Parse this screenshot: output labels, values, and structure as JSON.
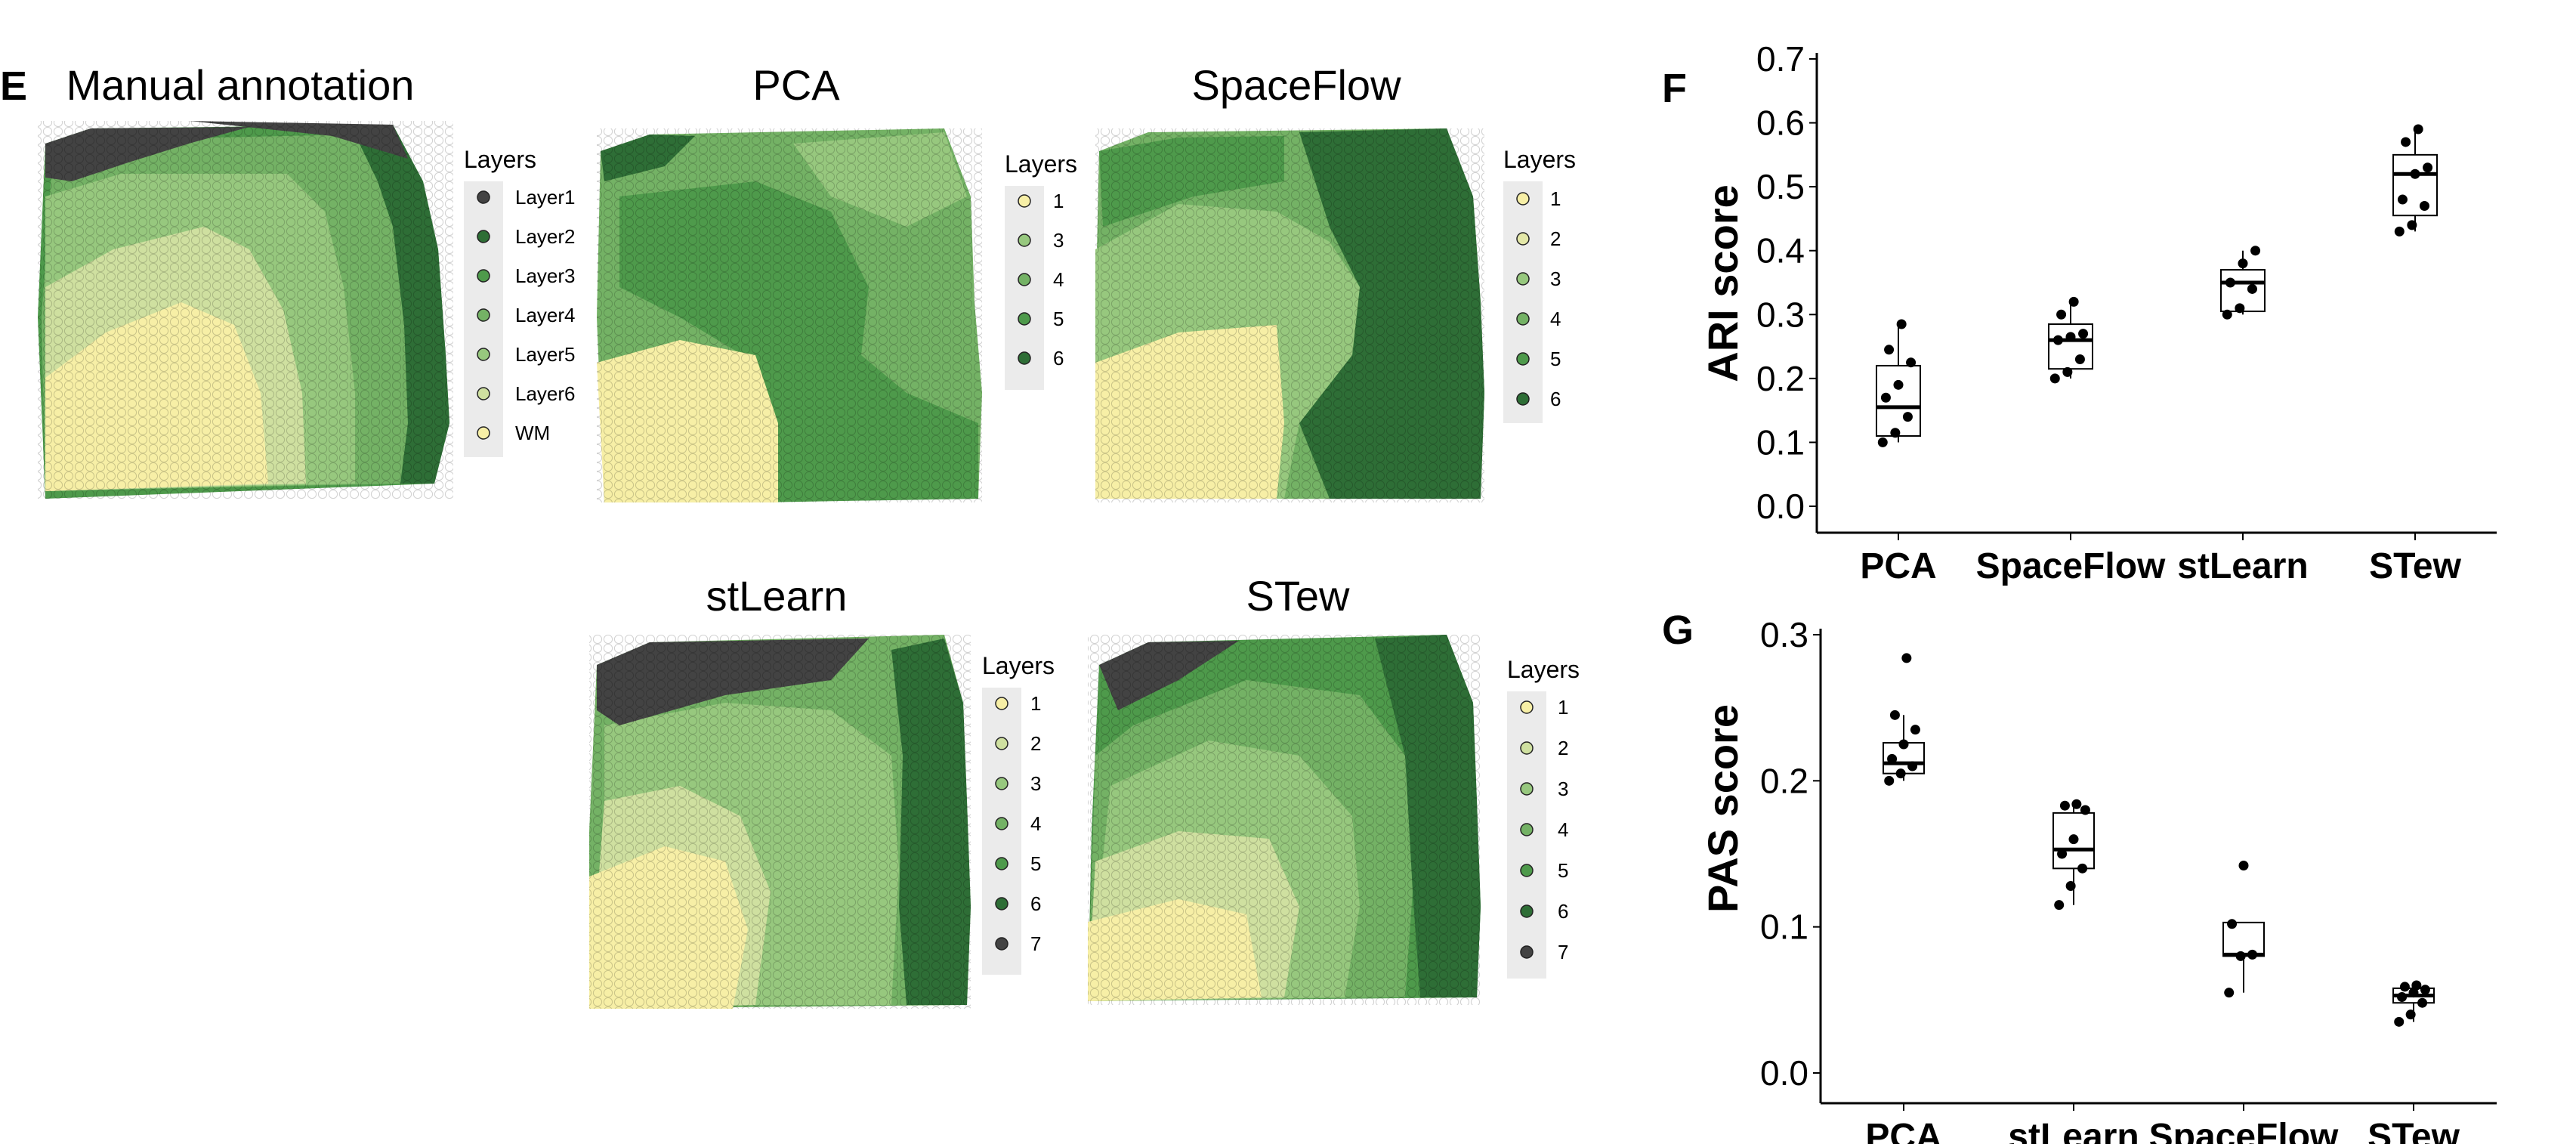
{
  "panels": {
    "E": "E",
    "F": "F",
    "G": "G"
  },
  "colors": {
    "wm": "#f7efa6",
    "layer6": "#cfe0a0",
    "layer5": "#97c87e",
    "layer4": "#74b265",
    "layer3": "#4e9a4b",
    "layer2": "#2e6e36",
    "layer1": "#434343",
    "legend_bg": "#ebebeb",
    "box_stroke": "#000000",
    "point": "#000000"
  },
  "maps": [
    {
      "title": "Manual annotation",
      "legend_title": "Layers",
      "legend": [
        {
          "label": "Layer1",
          "color": "#434343"
        },
        {
          "label": "Layer2",
          "color": "#2e6e36"
        },
        {
          "label": "Layer3",
          "color": "#4e9a4b"
        },
        {
          "label": "Layer4",
          "color": "#74b265"
        },
        {
          "label": "Layer5",
          "color": "#97c87e"
        },
        {
          "label": "Layer6",
          "color": "#cfe0a0"
        },
        {
          "label": "WM",
          "color": "#f7efa6"
        }
      ]
    },
    {
      "title": "PCA",
      "legend_title": "Layers",
      "legend": [
        {
          "label": "1",
          "color": "#f7efa6"
        },
        {
          "label": "3",
          "color": "#97c87e"
        },
        {
          "label": "4",
          "color": "#74b265"
        },
        {
          "label": "5",
          "color": "#4e9a4b"
        },
        {
          "label": "6",
          "color": "#2e6e36"
        }
      ]
    },
    {
      "title": "SpaceFlow",
      "legend_title": "Layers",
      "legend": [
        {
          "label": "1",
          "color": "#f7efa6"
        },
        {
          "label": "2",
          "color": "#e4e8a8"
        },
        {
          "label": "3",
          "color": "#97c87e"
        },
        {
          "label": "4",
          "color": "#74b265"
        },
        {
          "label": "5",
          "color": "#4e9a4b"
        },
        {
          "label": "6",
          "color": "#2e6e36"
        }
      ]
    },
    {
      "title": "stLearn",
      "legend_title": "Layers",
      "legend": [
        {
          "label": "1",
          "color": "#f7efa6"
        },
        {
          "label": "2",
          "color": "#cfe0a0"
        },
        {
          "label": "3",
          "color": "#97c87e"
        },
        {
          "label": "4",
          "color": "#74b265"
        },
        {
          "label": "5",
          "color": "#4e9a4b"
        },
        {
          "label": "6",
          "color": "#2e6e36"
        },
        {
          "label": "7",
          "color": "#434343"
        }
      ]
    },
    {
      "title": "STew",
      "legend_title": "Layers",
      "legend": [
        {
          "label": "1",
          "color": "#f7efa6"
        },
        {
          "label": "2",
          "color": "#cfe0a0"
        },
        {
          "label": "3",
          "color": "#97c87e"
        },
        {
          "label": "4",
          "color": "#74b265"
        },
        {
          "label": "5",
          "color": "#4e9a4b"
        },
        {
          "label": "6",
          "color": "#2e6e36"
        },
        {
          "label": "7",
          "color": "#434343"
        }
      ]
    }
  ],
  "chart_data": [
    {
      "panel": "F",
      "type": "box",
      "ylabel": "ARI score",
      "ylim": [
        0,
        0.7
      ],
      "yticks": [
        "0.0",
        "0.1",
        "0.2",
        "0.3",
        "0.4",
        "0.5",
        "0.6",
        "0.7"
      ],
      "categories": [
        "PCA",
        "SpaceFlow",
        "stLearn",
        "STew"
      ],
      "boxes": [
        {
          "min": 0.1,
          "q1": 0.11,
          "median": 0.155,
          "q3": 0.22,
          "max": 0.285
        },
        {
          "min": 0.2,
          "q1": 0.215,
          "median": 0.26,
          "q3": 0.285,
          "max": 0.32
        },
        {
          "min": 0.3,
          "q1": 0.305,
          "median": 0.35,
          "q3": 0.37,
          "max": 0.4
        },
        {
          "min": 0.43,
          "q1": 0.455,
          "median": 0.52,
          "q3": 0.55,
          "max": 0.59
        }
      ],
      "points": [
        [
          0.1,
          0.115,
          0.14,
          0.17,
          0.19,
          0.225,
          0.245,
          0.285
        ],
        [
          0.2,
          0.21,
          0.23,
          0.26,
          0.265,
          0.27,
          0.3,
          0.32
        ],
        [
          0.3,
          0.31,
          0.34,
          0.35,
          0.38,
          0.4
        ],
        [
          0.43,
          0.44,
          0.47,
          0.48,
          0.52,
          0.53,
          0.57,
          0.59
        ]
      ],
      "grid": false
    },
    {
      "panel": "G",
      "type": "box",
      "ylabel": "PAS score",
      "ylim": [
        0,
        0.3
      ],
      "yticks": [
        "0.0",
        "0.1",
        "0.2",
        "0.3"
      ],
      "categories": [
        "PCA",
        "stLearn",
        "SpaceFlow",
        "STew"
      ],
      "boxes": [
        {
          "min": 0.2,
          "q1": 0.205,
          "median": 0.212,
          "q3": 0.226,
          "max": 0.245
        },
        {
          "min": 0.115,
          "q1": 0.14,
          "median": 0.153,
          "q3": 0.178,
          "max": 0.184
        },
        {
          "min": 0.055,
          "q1": 0.08,
          "median": 0.081,
          "q3": 0.103,
          "max": 0.103
        },
        {
          "min": 0.035,
          "q1": 0.048,
          "median": 0.053,
          "q3": 0.058,
          "max": 0.06
        }
      ],
      "points": [
        [
          0.2,
          0.205,
          0.21,
          0.215,
          0.225,
          0.235,
          0.245,
          0.284
        ],
        [
          0.115,
          0.128,
          0.14,
          0.15,
          0.16,
          0.18,
          0.183,
          0.184
        ],
        [
          0.055,
          0.08,
          0.081,
          0.102,
          0.142
        ],
        [
          0.035,
          0.04,
          0.048,
          0.052,
          0.055,
          0.057,
          0.059,
          0.06
        ]
      ],
      "grid": false
    }
  ]
}
